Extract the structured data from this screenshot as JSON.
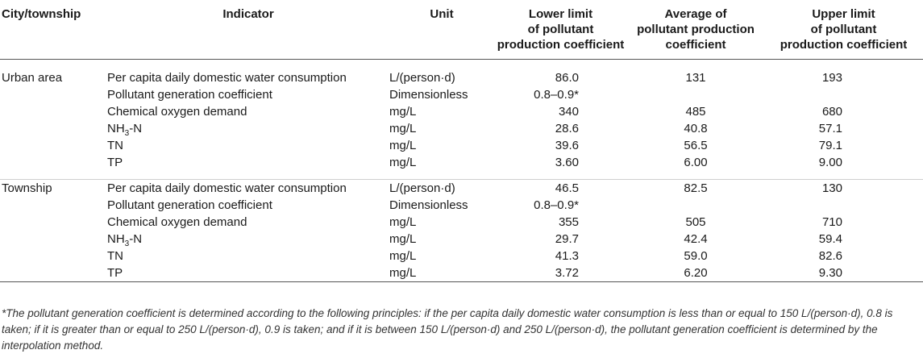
{
  "headers": {
    "city": "City/township",
    "indicator": "Indicator",
    "unit": "Unit",
    "lower": [
      "Lower limit",
      "of pollutant",
      "production coefficient"
    ],
    "average": [
      "Average of",
      "pollutant production",
      "coefficient"
    ],
    "upper": [
      "Upper limit",
      "of pollutant",
      "production coefficient"
    ]
  },
  "groups": [
    {
      "city": "Urban area",
      "rows": [
        {
          "indicator": "Per capita daily domestic water consumption",
          "unit": "L/(person·d)",
          "lower": "86.0",
          "average": "131",
          "upper": "193"
        },
        {
          "indicator": "Pollutant generation coefficient",
          "unit": "Dimensionless",
          "lower": "0.8–0.9*",
          "average": "",
          "upper": ""
        },
        {
          "indicator": "Chemical oxygen demand",
          "unit": "mg/L",
          "lower": "340",
          "average": "485",
          "upper": "680"
        },
        {
          "indicator_main": "NH",
          "indicator_sub": "3",
          "indicator_tail": "-N",
          "unit": "mg/L",
          "lower": "28.6",
          "average": "40.8",
          "upper": "57.1"
        },
        {
          "indicator": "TN",
          "unit": "mg/L",
          "lower": "39.6",
          "average": "56.5",
          "upper": "79.1"
        },
        {
          "indicator": "TP",
          "unit": "mg/L",
          "lower": "3.60",
          "average": "6.00",
          "upper": "9.00"
        }
      ]
    },
    {
      "city": "Township",
      "rows": [
        {
          "indicator": "Per capita daily domestic water consumption",
          "unit": "L/(person·d)",
          "lower": "46.5",
          "average": "82.5",
          "upper": "130"
        },
        {
          "indicator": "Pollutant generation coefficient",
          "unit": "Dimensionless",
          "lower": "0.8–0.9*",
          "average": "",
          "upper": ""
        },
        {
          "indicator": "Chemical oxygen demand",
          "unit": "mg/L",
          "lower": "355",
          "average": "505",
          "upper": "710"
        },
        {
          "indicator_main": "NH",
          "indicator_sub": "3",
          "indicator_tail": "-N",
          "unit": "mg/L",
          "lower": "29.7",
          "average": "42.4",
          "upper": "59.4"
        },
        {
          "indicator": "TN",
          "unit": "mg/L",
          "lower": "41.3",
          "average": "59.0",
          "upper": "82.6"
        },
        {
          "indicator": "TP",
          "unit": "mg/L",
          "lower": "3.72",
          "average": "6.20",
          "upper": "9.30"
        }
      ]
    }
  ],
  "footnote": "*The pollutant generation coefficient is determined according to the following principles: if the per capita daily domestic water consumption is less than or equal to 150 L/(person·d), 0.8 is taken; if it is greater than or equal to 250 L/(person·d), 0.9 is taken; and if it is between 150 L/(person·d) and 250 L/(person·d), the pollutant generation coefficient is determined by the interpolation method."
}
